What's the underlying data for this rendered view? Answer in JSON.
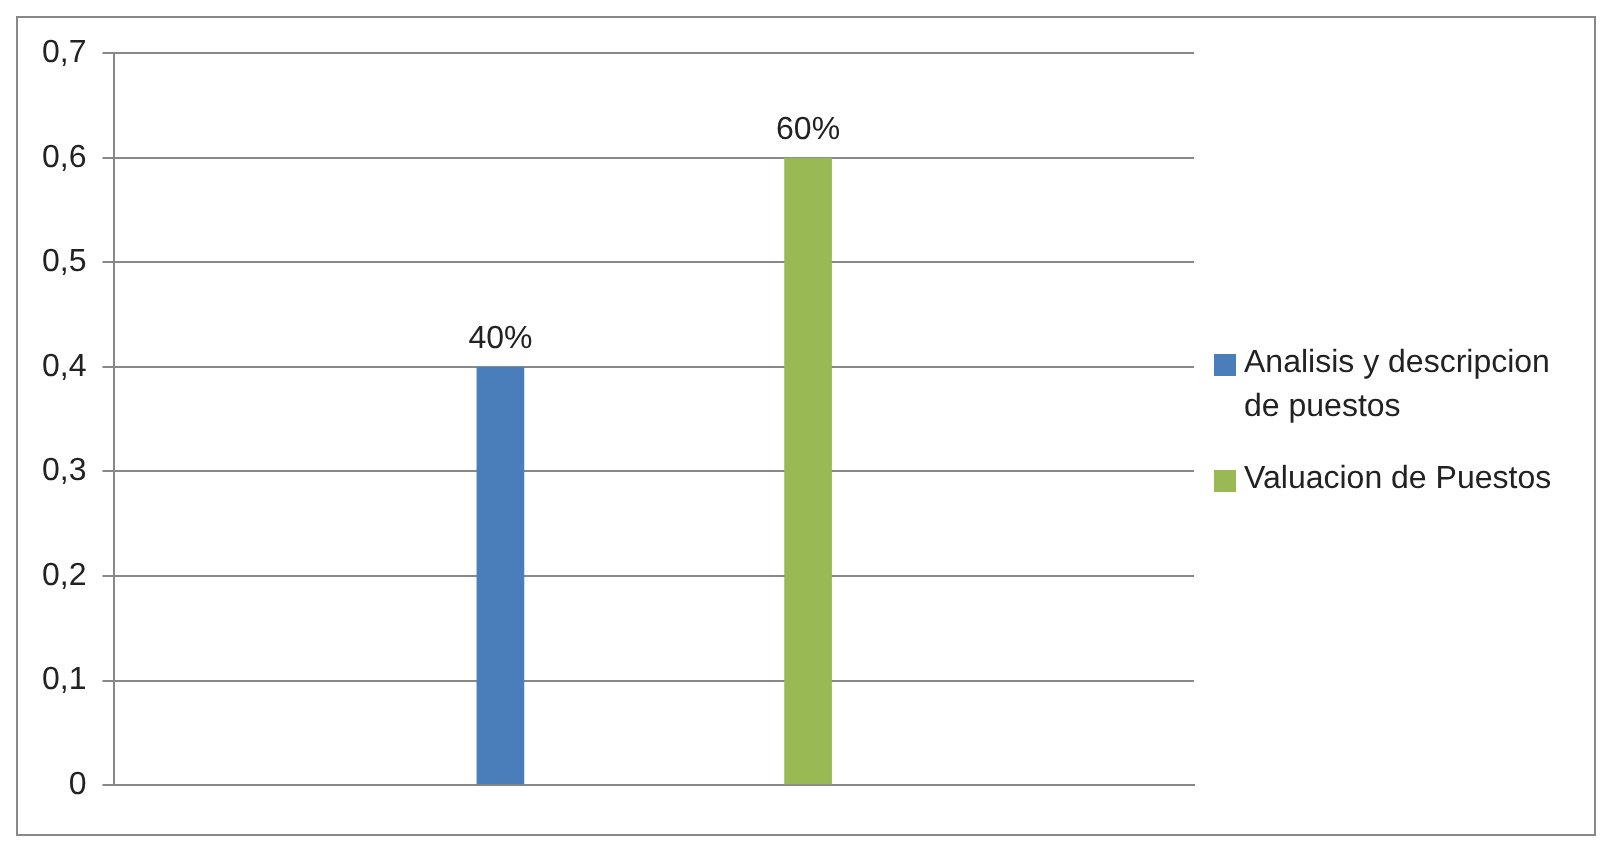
{
  "chart_data": {
    "type": "bar",
    "categories": [
      null
    ],
    "series": [
      {
        "name": "Analisis y descripcion de puestos",
        "color": "#4a7ebb",
        "values": [
          0.4
        ],
        "value_labels": [
          "40%"
        ]
      },
      {
        "name": "Valuacion de Puestos",
        "color": "#98b954",
        "values": [
          0.6
        ],
        "value_labels": [
          "60%"
        ]
      }
    ],
    "ylim": [
      0,
      0.7
    ],
    "yticks": [
      0,
      {
        "value": 0.1,
        "label": "0,1"
      },
      {
        "value": 0.2,
        "label": "0,2"
      },
      {
        "value": 0.3,
        "label": "0,3"
      },
      {
        "value": 0.4,
        "label": "0,4"
      },
      {
        "value": 0.5,
        "label": "0,5"
      },
      {
        "value": 0.6,
        "label": "0,6"
      },
      {
        "value": 0.7,
        "label": "0,7"
      }
    ],
    "grid": "y",
    "legend": "right"
  }
}
